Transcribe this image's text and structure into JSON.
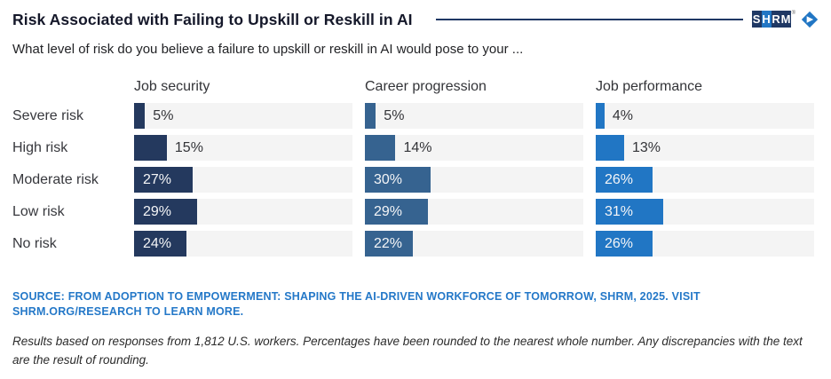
{
  "page": {
    "title": "Risk Associated with Failing to Upskill or Reskill in AI",
    "subtitle": "What level of risk do you believe a failure to upskill or reskill in AI would pose to your ...",
    "source": "SOURCE: FROM ADOPTION TO EMPOWERMENT: SHAPING THE AI-DRIVEN WORKFORCE OF TOMORROW, SHRM, 2025. VISIT SHRM.ORG/RESEARCH TO LEARN MORE.",
    "footnote": "Results based on responses from 1,812 U.S. workers. Percentages have been rounded to the nearest whole number. Any discrepancies with the text are the result of rounding."
  },
  "logo": {
    "letters": [
      "S",
      "H",
      "R",
      "M"
    ],
    "registered": "®",
    "tile_colors": [
      "#1f3864",
      "#2176c4",
      "#1f3864",
      "#1f3864"
    ],
    "mark_color": "#2176c4"
  },
  "colors": {
    "accent_rule": "#1f3864",
    "track": "#f4f4f4",
    "source_text": "#2478c8"
  },
  "chart_data": {
    "type": "bar",
    "orientation": "horizontal",
    "title": "Risk Associated with Failing to Upskill or Reskill in AI",
    "subtitle": "What level of risk do you believe a failure to upskill or reskill in AI would pose to your ...",
    "categories": [
      "Severe risk",
      "High risk",
      "Moderate risk",
      "Low risk",
      "No risk"
    ],
    "series": [
      {
        "name": "Job security",
        "color": "#24395e",
        "values": [
          5,
          15,
          27,
          29,
          24
        ]
      },
      {
        "name": "Career progression",
        "color": "#366390",
        "values": [
          5,
          14,
          30,
          29,
          22
        ]
      },
      {
        "name": "Job performance",
        "color": "#2176c4",
        "values": [
          4,
          13,
          26,
          31,
          26
        ]
      }
    ],
    "value_suffix": "%",
    "xlim": [
      0,
      100
    ],
    "inside_label_threshold": 20,
    "grid": false,
    "legend_position": "none"
  }
}
